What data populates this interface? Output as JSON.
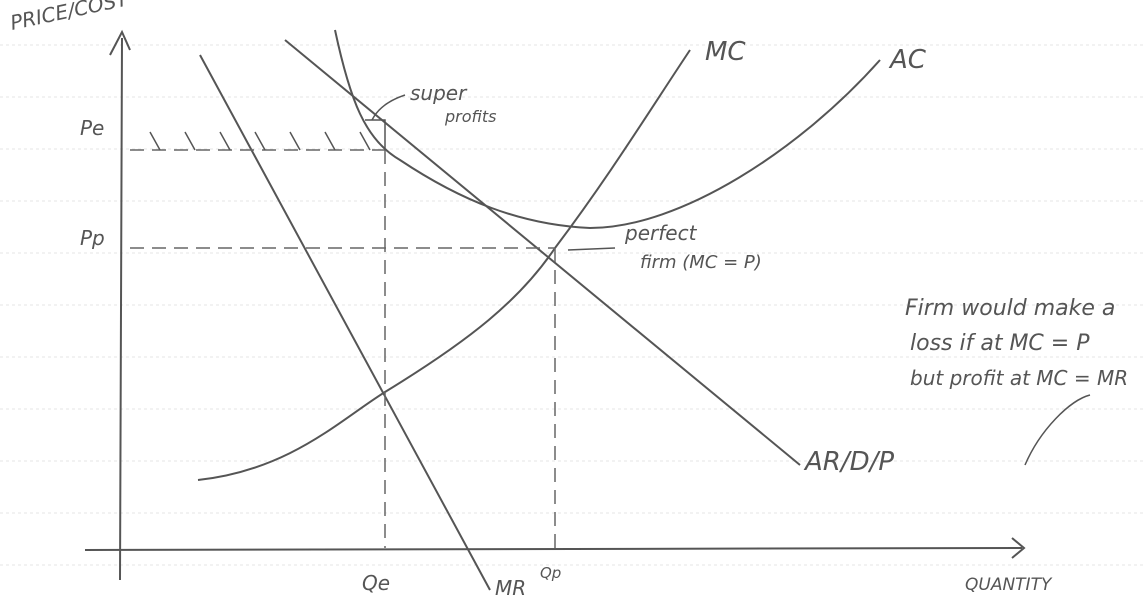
{
  "diagram": {
    "y_axis_label": "PRICE/COST",
    "x_axis_label": "QUANTITY",
    "price_labels": {
      "pe": "Pe",
      "pp": "Pp"
    },
    "quantity_labels": {
      "qe": "Qe",
      "qp": "Qp"
    },
    "curves": {
      "mc": "MC",
      "ac": "AC",
      "demand": "AR/D/P",
      "mr": "MR"
    },
    "annotations": {
      "super_profits": [
        "super",
        "profits"
      ],
      "perfect_firm": [
        "perfect",
        "firm (MC = P)"
      ],
      "note": [
        "Firm would make a",
        "loss if at MC = P",
        "but profit at MC = MR"
      ]
    }
  }
}
